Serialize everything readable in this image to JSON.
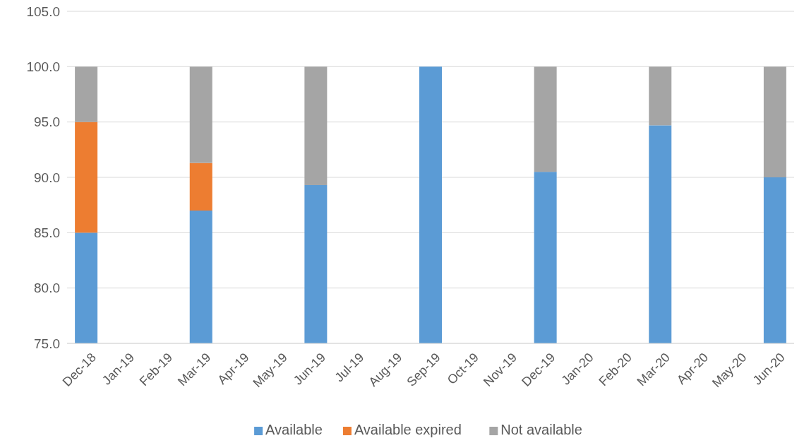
{
  "chart_data": {
    "type": "bar",
    "categories": [
      "Dec-18",
      "Jan-19",
      "Feb-19",
      "Mar-19",
      "Apr-19",
      "May-19",
      "Jun-19",
      "Jul-19",
      "Aug-19",
      "Sep-19",
      "Oct-19",
      "Nov-19",
      "Dec-19",
      "Jan-20",
      "Feb-20",
      "Mar-20",
      "Apr-20",
      "May-20",
      "Jun-20"
    ],
    "series": [
      {
        "name": "Available",
        "color": "#5b9bd5",
        "values": [
          85,
          null,
          null,
          87,
          null,
          null,
          89.3,
          null,
          null,
          100,
          null,
          null,
          90.5,
          null,
          null,
          94.7,
          null,
          null,
          90
        ]
      },
      {
        "name": "Available expired",
        "color": "#ed7d31",
        "base": [
          85,
          null,
          null,
          87,
          null,
          null,
          null,
          null,
          null,
          null,
          null,
          null,
          null,
          null,
          null,
          null,
          null,
          null,
          null
        ],
        "values": [
          10,
          null,
          null,
          4.3,
          null,
          null,
          null,
          null,
          null,
          null,
          null,
          null,
          null,
          null,
          null,
          null,
          null,
          null,
          null
        ]
      },
      {
        "name": "Not available",
        "color": "#a5a5a5",
        "base": [
          95,
          null,
          null,
          91.3,
          null,
          null,
          89.3,
          null,
          null,
          null,
          null,
          null,
          90.5,
          null,
          null,
          94.7,
          null,
          null,
          90
        ],
        "values": [
          5,
          null,
          null,
          8.7,
          null,
          null,
          10.7,
          null,
          null,
          null,
          null,
          null,
          9.5,
          null,
          null,
          5.3,
          null,
          null,
          10
        ]
      }
    ],
    "ylim": [
      75,
      105
    ],
    "yticks": [
      {
        "value": 75,
        "label": "75.0"
      },
      {
        "value": 80,
        "label": "80.0"
      },
      {
        "value": 85,
        "label": "85.0"
      },
      {
        "value": 90,
        "label": "90.0"
      },
      {
        "value": 95,
        "label": "95.0"
      },
      {
        "value": 100,
        "label": "100.0"
      },
      {
        "value": 105,
        "label": "105.0"
      }
    ],
    "grid": "y",
    "legend": "bottom"
  }
}
